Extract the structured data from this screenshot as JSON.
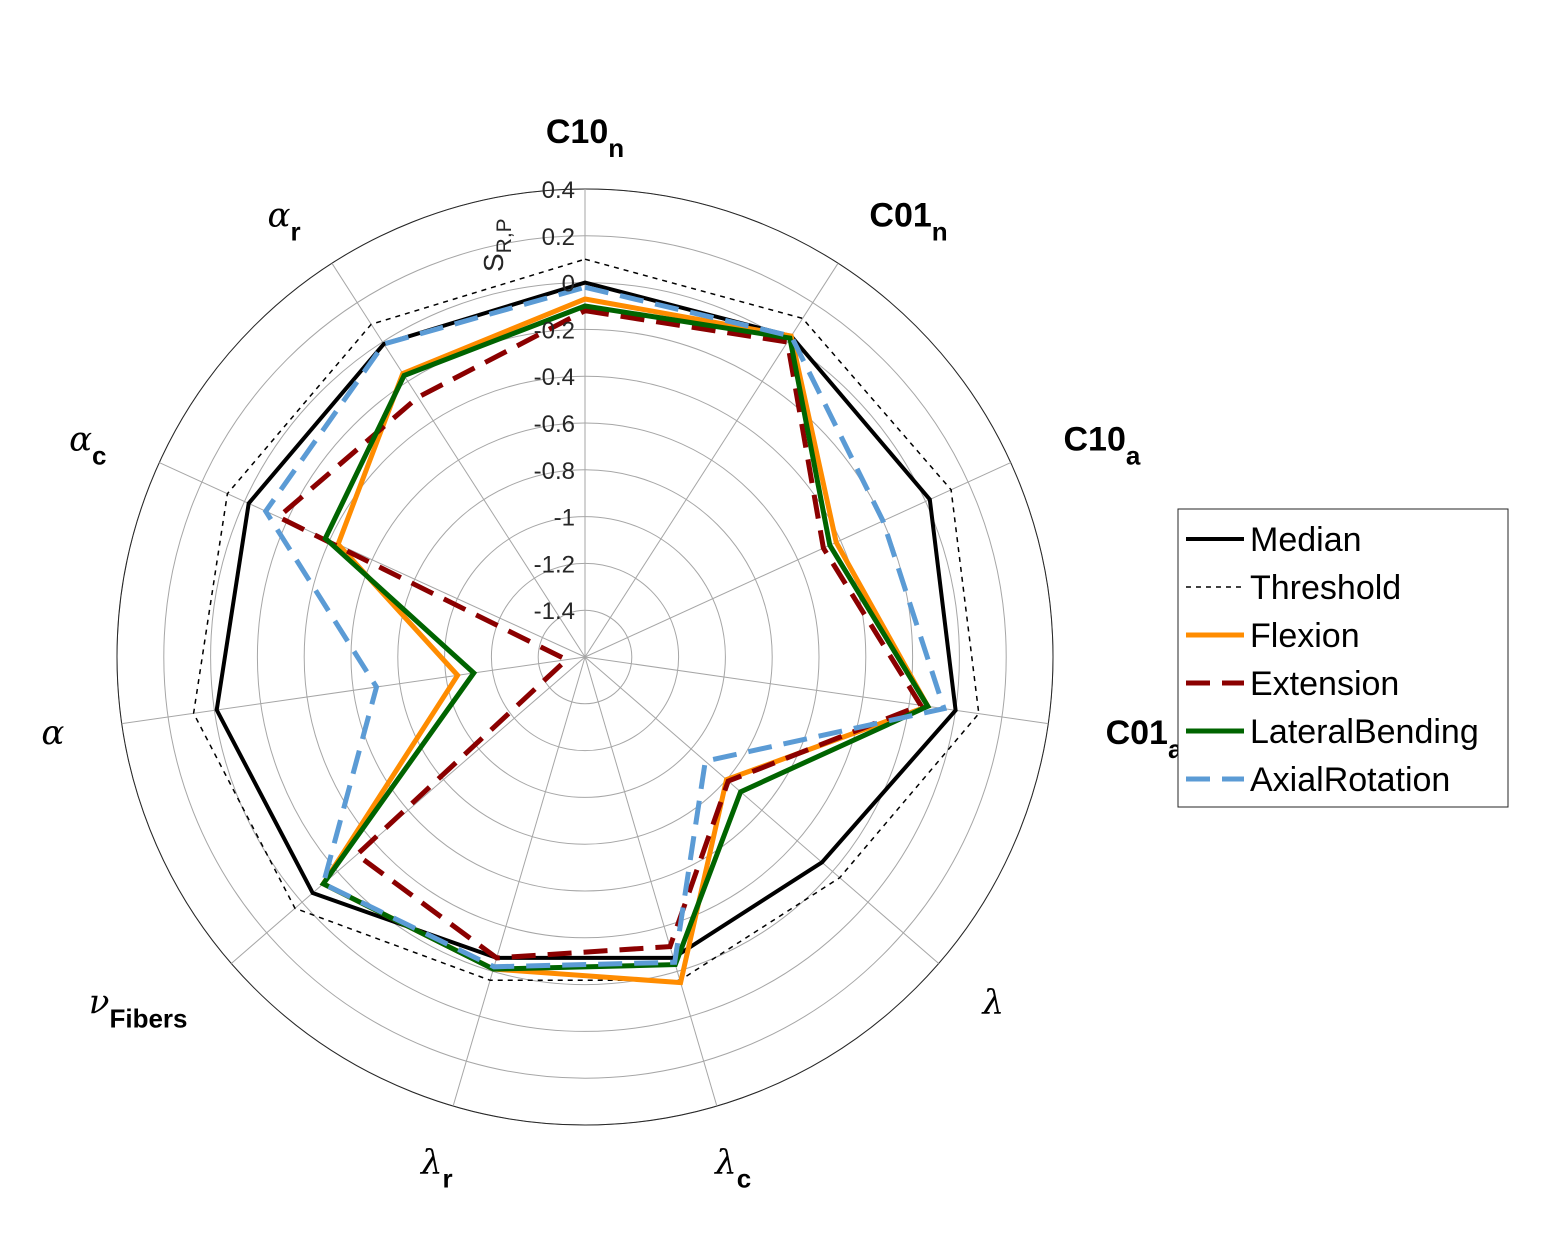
{
  "chart_data": {
    "type": "radar",
    "radial_axis": {
      "label": "S",
      "label_subscript": "R,P",
      "range": [
        -1.6,
        0.4
      ],
      "tick_values": [
        0.4,
        0.2,
        0,
        -0.2,
        -0.4,
        -0.6,
        -0.8,
        -1,
        -1.2,
        -1.4
      ],
      "tick_labels": [
        "0.4",
        "0.2",
        "0",
        "-0.2",
        "-0.4",
        "-0.6",
        "-0.8",
        "-1",
        "-1.2",
        "-1.4"
      ]
    },
    "axes": [
      {
        "main": "C10",
        "sub": "n",
        "style": "bold"
      },
      {
        "main": "C01",
        "sub": "n",
        "style": "bold"
      },
      {
        "main": "C10",
        "sub": "a",
        "style": "bold"
      },
      {
        "main": "C01",
        "sub": "a",
        "style": "bold"
      },
      {
        "main": "λ",
        "sub": "",
        "style": "greek"
      },
      {
        "main": "λ",
        "sub": "c",
        "style": "greek"
      },
      {
        "main": "λ",
        "sub": "r",
        "style": "greek"
      },
      {
        "main": "ν",
        "sub": "Fibers",
        "style": "greek"
      },
      {
        "main": "α",
        "sub": "",
        "style": "greek"
      },
      {
        "main": "α",
        "sub": "c",
        "style": "greek"
      },
      {
        "main": "α",
        "sub": "r",
        "style": "greek"
      }
    ],
    "series": [
      {
        "name": "Median",
        "color": "#000000",
        "dash": "solid",
        "width": 4,
        "values": [
          0.0,
          0.03,
          0.02,
          0.0,
          -0.26,
          -0.26,
          -0.26,
          -0.06,
          -0.01,
          -0.02,
          -0.01
        ]
      },
      {
        "name": "Threshold",
        "color": "#000000",
        "dash": "dotted",
        "width": 1.5,
        "values": [
          0.1,
          0.12,
          0.12,
          0.1,
          -0.16,
          -0.16,
          -0.16,
          0.04,
          0.09,
          0.08,
          0.09
        ]
      },
      {
        "name": "Flexion",
        "color": "#ff8c00",
        "dash": "solid",
        "width": 5,
        "values": [
          -0.07,
          0.03,
          -0.42,
          -0.12,
          -0.8,
          -0.15,
          -0.21,
          -0.12,
          -1.05,
          -0.44,
          -0.16
        ]
      },
      {
        "name": "Extension",
        "color": "#8b0000",
        "dash": "dashed",
        "width": 5,
        "values": [
          -0.12,
          0.0,
          -0.48,
          -0.15,
          -0.79,
          -0.31,
          -0.26,
          -0.31,
          -1.52,
          -0.16,
          -0.28
        ]
      },
      {
        "name": "LateralBending",
        "color": "#006400",
        "dash": "solid",
        "width": 5,
        "values": [
          -0.1,
          0.02,
          -0.45,
          -0.12,
          -0.72,
          -0.23,
          -0.21,
          -0.12,
          -1.12,
          -0.38,
          -0.17
        ]
      },
      {
        "name": "AxialRotation",
        "color": "#5b9bd5",
        "dash": "dashed",
        "width": 5,
        "values": [
          -0.02,
          0.03,
          -0.2,
          -0.05,
          -0.92,
          -0.24,
          -0.22,
          -0.12,
          -0.7,
          -0.1,
          -0.01
        ]
      }
    ],
    "legend": {
      "position": "right"
    },
    "grid": true
  }
}
